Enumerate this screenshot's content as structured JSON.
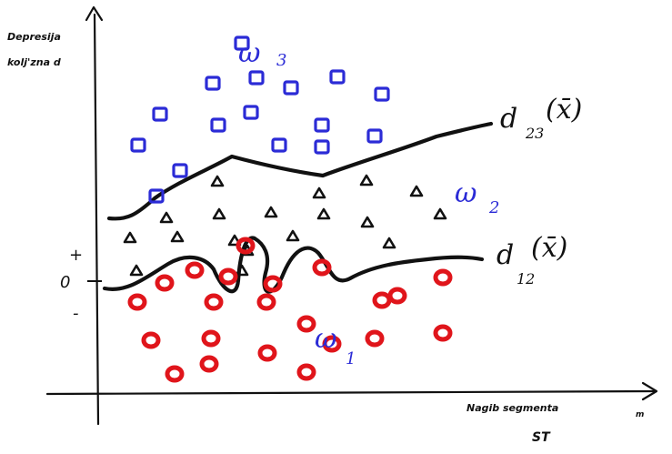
{
  "axes": {
    "y_label_line1": "Depresija",
    "y_label_line2": "kolj'zna d",
    "x_label_line1": "Nagib segmenta",
    "x_label_line1_suffix": "m",
    "x_label_line2": "ST",
    "plus_sign": "+",
    "zero_sign": "0",
    "minus_sign": "-"
  },
  "classes": {
    "omega3": {
      "letter": "ω",
      "index": "3",
      "color": "#2b2bd6"
    },
    "omega2": {
      "letter": "ω",
      "index": "2",
      "color": "#2b2bd6"
    },
    "omega1": {
      "letter": "ω",
      "index": "1",
      "color": "#2b2bd6"
    }
  },
  "boundaries": {
    "d23": {
      "letter": "d",
      "sub": "23",
      "arg": "(x̄)"
    },
    "d12": {
      "letter": "d",
      "sub": "12",
      "arg": "(x̄)"
    }
  },
  "colors": {
    "squares": "#2b2bd6",
    "triangles": "#111111",
    "circles": "#e0151b",
    "lines": "#111111"
  },
  "point_counts": {
    "squares": 16,
    "triangles": 18,
    "circles": 22
  }
}
